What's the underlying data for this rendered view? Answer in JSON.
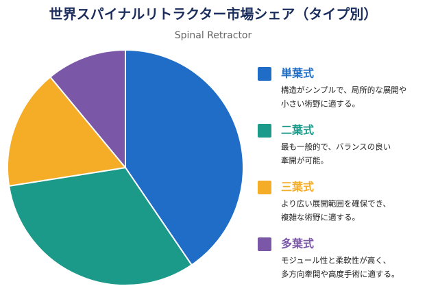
{
  "chart_data": {
    "type": "pie",
    "title": "世界スパイナルリトラクター市場シェア（タイプ別）",
    "subtitle": "Spinal Retractor",
    "categories": [
      "単葉式",
      "二葉式",
      "三葉式",
      "多葉式"
    ],
    "values": [
      40.5,
      32,
      16.5,
      11
    ],
    "colors": [
      "#1f6dc6",
      "#1b9a8a",
      "#f5ad28",
      "#7b57a8"
    ],
    "descriptions": [
      [
        "構造がシンプルで、局所的な展開や",
        "小さい術野に適する。"
      ],
      [
        "最も一般的で、バランスの良い",
        "牽開が可能。"
      ],
      [
        "より広い展開範囲を確保でき、",
        "複雑な術野に適する。"
      ],
      [
        "モジュール性と柔軟性が高く、",
        "多方向牽開や高度手術に適する。"
      ]
    ]
  }
}
